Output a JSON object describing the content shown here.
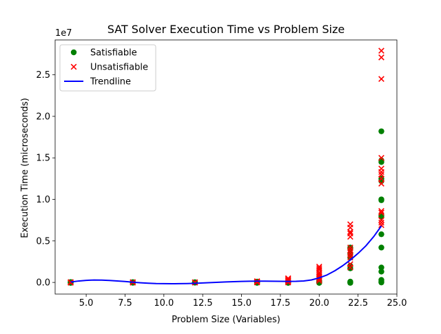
{
  "chart_data": {
    "type": "scatter",
    "title": "SAT Solver Execution Time vs Problem Size",
    "xlabel": "Problem Size (Variables)",
    "ylabel": "Execution Time (microseconds)",
    "y_multiplier_label": "1e7",
    "y_scale_factor": 10000000,
    "xlim": [
      3.0,
      25.0
    ],
    "ylim": [
      -1400000,
      29200000
    ],
    "x_ticks": [
      5.0,
      7.5,
      10.0,
      12.5,
      15.0,
      17.5,
      20.0,
      22.5,
      25.0
    ],
    "x_tick_labels": [
      "5.0",
      "7.5",
      "10.0",
      "12.5",
      "15.0",
      "17.5",
      "20.0",
      "22.5",
      "25.0"
    ],
    "y_ticks": [
      0,
      5000000,
      10000000,
      15000000,
      20000000,
      25000000
    ],
    "y_tick_labels": [
      "0.0",
      "0.5",
      "1.0",
      "1.5",
      "2.0",
      "2.5"
    ],
    "grid": false,
    "legend": "top-left",
    "series": [
      {
        "name": "Satisfiable",
        "marker": "circle",
        "color": "#008000",
        "points": [
          [
            4,
            0
          ],
          [
            4,
            20000
          ],
          [
            4,
            50000
          ],
          [
            4,
            -60000
          ],
          [
            8,
            0
          ],
          [
            8,
            30000
          ],
          [
            8,
            -40000
          ],
          [
            12,
            0
          ],
          [
            12,
            20000
          ],
          [
            12,
            -30000
          ],
          [
            16,
            0
          ],
          [
            16,
            40000
          ],
          [
            16,
            -50000
          ],
          [
            16,
            100000
          ],
          [
            18,
            0
          ],
          [
            18,
            30000
          ],
          [
            18,
            -60000
          ],
          [
            18,
            80000
          ],
          [
            20,
            0
          ],
          [
            20,
            20000
          ],
          [
            20,
            -60000
          ],
          [
            20,
            100000
          ],
          [
            20,
            200000
          ],
          [
            22,
            0
          ],
          [
            22,
            -50000
          ],
          [
            22,
            100000
          ],
          [
            22,
            1700000
          ],
          [
            22,
            2000000
          ],
          [
            22,
            3000000
          ],
          [
            22,
            3500000
          ],
          [
            22,
            4100000
          ],
          [
            22,
            4200000
          ],
          [
            24,
            0
          ],
          [
            24,
            100000
          ],
          [
            24,
            300000
          ],
          [
            24,
            1300000
          ],
          [
            24,
            1800000
          ],
          [
            24,
            4200000
          ],
          [
            24,
            5800000
          ],
          [
            24,
            7900000
          ],
          [
            24,
            8100000
          ],
          [
            24,
            9900000
          ],
          [
            24,
            10000000
          ],
          [
            24,
            12200000
          ],
          [
            24,
            12500000
          ],
          [
            24,
            14500000
          ],
          [
            24,
            14700000
          ],
          [
            24,
            18200000
          ]
        ]
      },
      {
        "name": "Unsatisfiable",
        "marker": "x",
        "color": "#ff0000",
        "points": [
          [
            4,
            0
          ],
          [
            4,
            -30000
          ],
          [
            4,
            40000
          ],
          [
            8,
            0
          ],
          [
            8,
            -20000
          ],
          [
            8,
            30000
          ],
          [
            12,
            0
          ],
          [
            12,
            20000
          ],
          [
            12,
            -20000
          ],
          [
            16,
            0
          ],
          [
            16,
            50000
          ],
          [
            16,
            150000
          ],
          [
            16,
            100000
          ],
          [
            18,
            0
          ],
          [
            18,
            100000
          ],
          [
            18,
            200000
          ],
          [
            18,
            300000
          ],
          [
            18,
            400000
          ],
          [
            18,
            500000
          ],
          [
            20,
            200000
          ],
          [
            20,
            400000
          ],
          [
            20,
            600000
          ],
          [
            20,
            800000
          ],
          [
            20,
            1000000
          ],
          [
            20,
            1200000
          ],
          [
            20,
            1500000
          ],
          [
            20,
            1700000
          ],
          [
            20,
            1900000
          ],
          [
            22,
            1800000
          ],
          [
            22,
            2200000
          ],
          [
            22,
            3000000
          ],
          [
            22,
            3300000
          ],
          [
            22,
            3600000
          ],
          [
            22,
            3900000
          ],
          [
            22,
            4200000
          ],
          [
            22,
            5500000
          ],
          [
            22,
            5900000
          ],
          [
            22,
            6100000
          ],
          [
            22,
            6600000
          ],
          [
            22,
            7000000
          ],
          [
            24,
            6900000
          ],
          [
            24,
            7200000
          ],
          [
            24,
            7500000
          ],
          [
            24,
            8400000
          ],
          [
            24,
            8600000
          ],
          [
            24,
            11900000
          ],
          [
            24,
            12500000
          ],
          [
            24,
            13000000
          ],
          [
            24,
            13300000
          ],
          [
            24,
            13700000
          ],
          [
            24,
            15000000
          ],
          [
            24,
            24500000
          ],
          [
            24,
            27100000
          ],
          [
            24,
            27900000
          ]
        ]
      },
      {
        "name": "Trendline",
        "marker": "line",
        "color": "#0000ff",
        "points": [
          [
            4,
            50000
          ],
          [
            4.5,
            170000
          ],
          [
            5,
            250000
          ],
          [
            5.5,
            285000
          ],
          [
            6,
            280000
          ],
          [
            6.5,
            240000
          ],
          [
            7,
            180000
          ],
          [
            7.5,
            110000
          ],
          [
            8,
            30000
          ],
          [
            8.5,
            -40000
          ],
          [
            9,
            -90000
          ],
          [
            9.5,
            -130000
          ],
          [
            10,
            -150000
          ],
          [
            10.5,
            -160000
          ],
          [
            11,
            -150000
          ],
          [
            11.5,
            -130000
          ],
          [
            12,
            -100000
          ],
          [
            12.5,
            -60000
          ],
          [
            13,
            -20000
          ],
          [
            13.5,
            20000
          ],
          [
            14,
            60000
          ],
          [
            14.5,
            90000
          ],
          [
            15,
            120000
          ],
          [
            15.5,
            140000
          ],
          [
            16,
            150000
          ],
          [
            16.5,
            150000
          ],
          [
            17,
            140000
          ],
          [
            17.5,
            130000
          ],
          [
            18,
            120000
          ],
          [
            18.5,
            130000
          ],
          [
            19,
            180000
          ],
          [
            19.5,
            300000
          ],
          [
            20,
            550000
          ],
          [
            20.5,
            900000
          ],
          [
            21,
            1400000
          ],
          [
            21.5,
            2000000
          ],
          [
            22,
            2700000
          ],
          [
            22.5,
            3500000
          ],
          [
            23,
            4400000
          ],
          [
            23.5,
            5500000
          ],
          [
            24,
            6800000
          ]
        ]
      }
    ]
  }
}
